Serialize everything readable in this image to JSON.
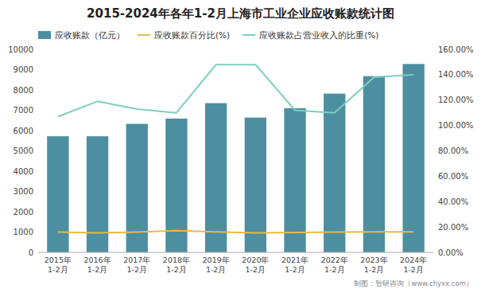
{
  "chart_data": {
    "type": "bar",
    "title": "2015-2024年各年1-2月上海市工业企业应收账款统计图",
    "categories": [
      "2015年\n1-2月",
      "2016年\n1-2月",
      "2017年\n1-2月",
      "2018年\n1-2月",
      "2019年\n1-2月",
      "2020年\n1-2月",
      "2021年\n1-2月",
      "2022年\n1-2月",
      "2023年\n1-2月",
      "2024年\n1-2月"
    ],
    "series": [
      {
        "name": "应收账款（亿元）",
        "type": "bar",
        "color": "#4d8fa0",
        "values": [
          5720,
          5720,
          6330,
          6590,
          7350,
          6640,
          7100,
          7820,
          8680,
          9280
        ]
      },
      {
        "name": "应收账款百分比(%)",
        "type": "line",
        "color": "#e8b84b",
        "values": [
          1000,
          960,
          1000,
          1070,
          1010,
          960,
          980,
          1000,
          1010,
          1010
        ]
      },
      {
        "name": "应收账款占营业收入的比重(%)",
        "type": "line",
        "color": "#7dcfbe",
        "axis": "y2",
        "values": [
          107,
          119,
          113,
          110,
          148,
          148,
          112,
          110,
          138,
          140
        ]
      }
    ],
    "ylim": [
      0,
      10000
    ],
    "yticks": [
      0,
      1000,
      2000,
      3000,
      4000,
      5000,
      6000,
      7000,
      8000,
      9000,
      10000
    ],
    "y2lim": [
      0,
      160
    ],
    "y2ticks": [
      {
        "value": 0,
        "label": "0.00%"
      },
      {
        "value": 20,
        "label": "20.00%"
      },
      {
        "value": 40,
        "label": "40.00%"
      },
      {
        "value": 60,
        "label": "60.00%"
      },
      {
        "value": 80,
        "label": "80.00%"
      },
      {
        "value": 100,
        "label": "100.00%"
      },
      {
        "value": 120,
        "label": "120.00%"
      },
      {
        "value": 140,
        "label": "140.00%"
      },
      {
        "value": 160,
        "label": "160.00%"
      }
    ],
    "annotations": [
      "制图：智研咨询（www.chyxx.com）"
    ],
    "grid": false,
    "legend": "top"
  }
}
